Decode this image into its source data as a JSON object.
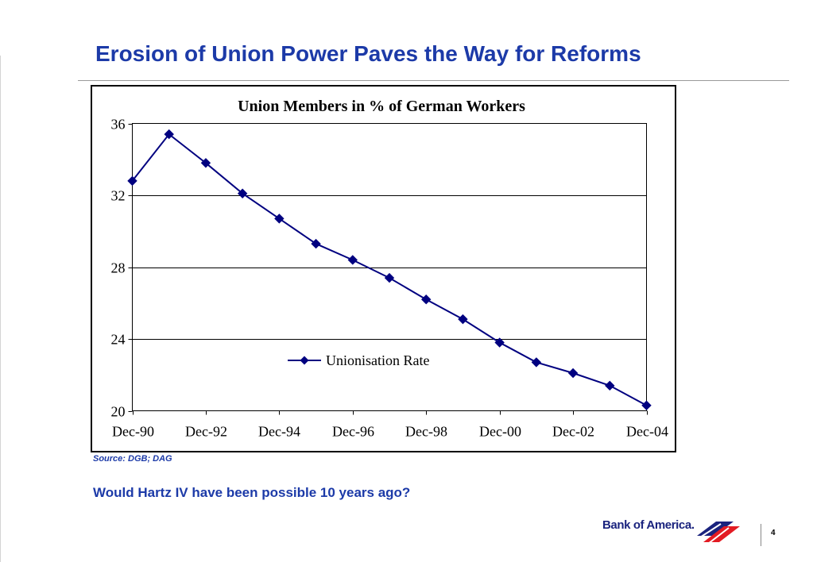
{
  "slide": {
    "title": "Erosion of Union Power Paves the Way for Reforms",
    "source": "Source: DGB; DAG",
    "question": "Would Hartz IV have been possible 10 years ago?",
    "brand": "Bank of America.",
    "page_number": "4"
  },
  "colors": {
    "title_blue": "#1c3aa8",
    "series_navy": "#000080",
    "logo_navy": "#1a237e",
    "logo_red": "#e31b23"
  },
  "icons": {
    "logo": "bank-of-america-flag-icon",
    "marker": "diamond-marker"
  },
  "chart_data": {
    "type": "line",
    "title": "Union Members in % of  German Workers",
    "xlabel": "",
    "ylabel": "",
    "ylim": [
      20,
      36
    ],
    "yticks": [
      "36",
      "32",
      "28",
      "24",
      "20"
    ],
    "xticks": [
      "Dec-90",
      "Dec-92",
      "Dec-94",
      "Dec-96",
      "Dec-98",
      "Dec-00",
      "Dec-02",
      "Dec-04"
    ],
    "x": [
      "Dec-90",
      "Dec-91",
      "Dec-92",
      "Dec-93",
      "Dec-94",
      "Dec-95",
      "Dec-96",
      "Dec-97",
      "Dec-98",
      "Dec-99",
      "Dec-00",
      "Dec-01",
      "Dec-02",
      "Dec-03",
      "Dec-04"
    ],
    "grid": true,
    "legend": "center",
    "series": [
      {
        "name": "Unionisation Rate",
        "marker": "diamond",
        "values": [
          32.8,
          35.4,
          33.8,
          32.1,
          30.7,
          29.3,
          28.4,
          27.4,
          26.2,
          25.1,
          23.8,
          22.7,
          22.1,
          21.4,
          20.3
        ]
      }
    ]
  }
}
